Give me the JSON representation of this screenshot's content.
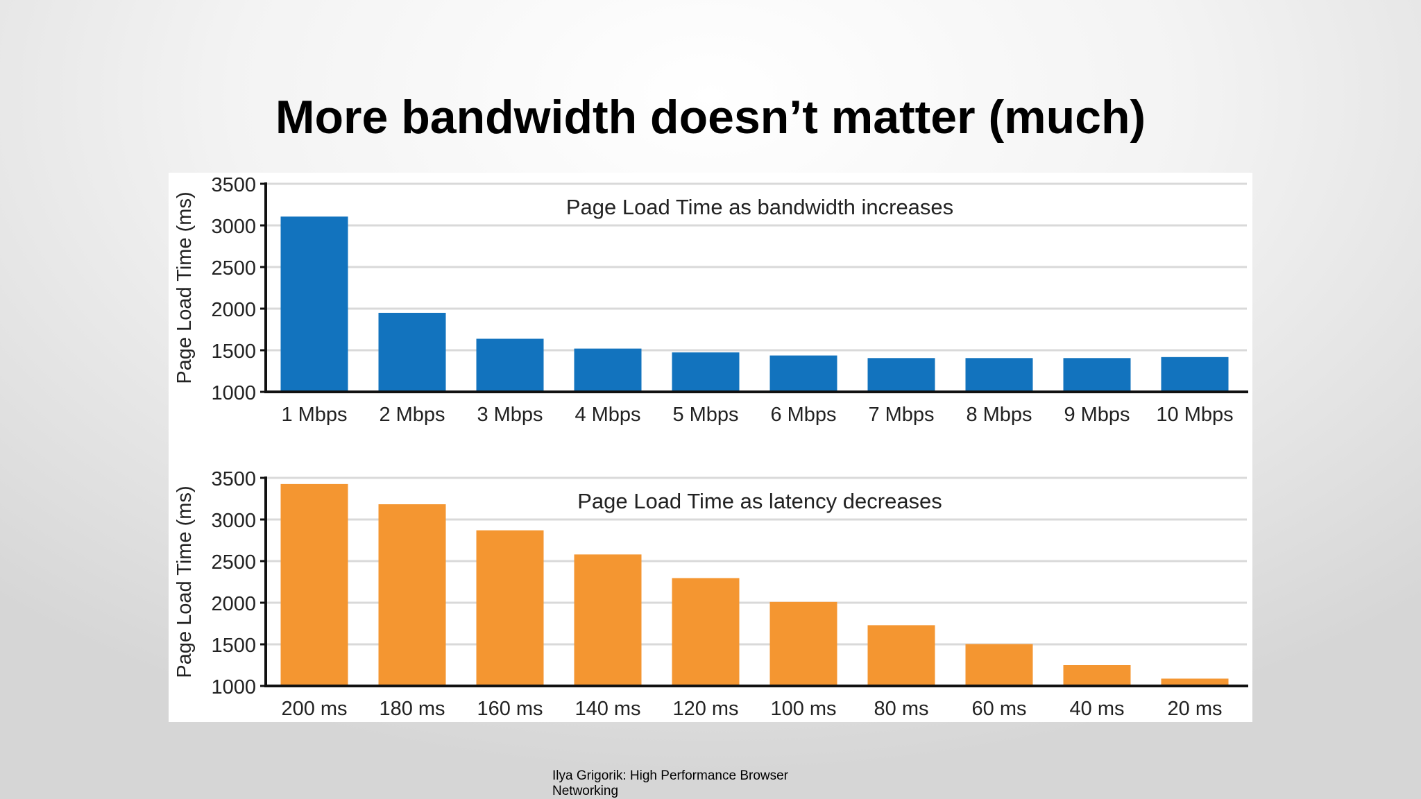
{
  "slide": {
    "title": "More bandwidth doesn’t matter (much)",
    "credit": "Ilya Grigorik: High Performance Browser Networking"
  },
  "chart_data": [
    {
      "type": "bar",
      "title": "Page Load Time as bandwidth increases",
      "xlabel": "",
      "ylabel": "Page Load Time (ms)",
      "ylim": [
        1000,
        3500
      ],
      "yticks": [
        1000,
        1500,
        2000,
        2500,
        3000,
        3500
      ],
      "grid": true,
      "color": "#1273be",
      "categories": [
        "1 Mbps",
        "2 Mbps",
        "3 Mbps",
        "4 Mbps",
        "5 Mbps",
        "6 Mbps",
        "7 Mbps",
        "8 Mbps",
        "9 Mbps",
        "10 Mbps"
      ],
      "values": [
        3106,
        1950,
        1638,
        1520,
        1474,
        1437,
        1406,
        1406,
        1406,
        1418
      ]
    },
    {
      "type": "bar",
      "title": "Page Load Time as latency decreases",
      "xlabel": "",
      "ylabel": "Page Load Time (ms)",
      "ylim": [
        1000,
        3500
      ],
      "yticks": [
        1000,
        1500,
        2000,
        2500,
        3000,
        3500
      ],
      "grid": true,
      "color": "#f49631",
      "categories": [
        "200 ms",
        "180 ms",
        "160 ms",
        "140 ms",
        "120 ms",
        "100 ms",
        "80 ms",
        "60 ms",
        "40 ms",
        "20 ms"
      ],
      "values": [
        3426,
        3183,
        2870,
        2580,
        2296,
        2010,
        1730,
        1503,
        1250,
        1088
      ]
    }
  ]
}
